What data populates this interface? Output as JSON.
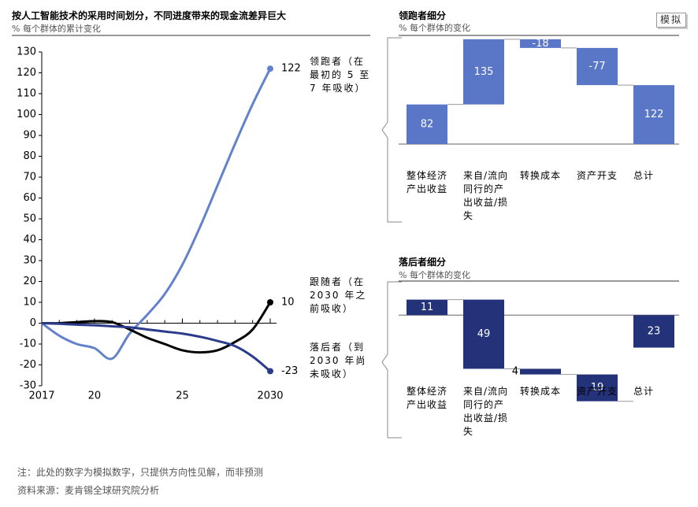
{
  "badge": "模拟",
  "notes": [
    "注：此处的数字为模拟数字，只提供方向性见解，而非预测",
    "资料来源：麦肯锡全球研究院分析"
  ],
  "chart_data": [
    {
      "type": "line",
      "title": "按人工智能技术的采用时间划分，不同进度带来的现金流差异巨大",
      "subtitle": "% 每个群体的累计变化",
      "x": [
        2017,
        2018,
        2019,
        2020,
        2021,
        2022,
        2023,
        2024,
        2025,
        2026,
        2027,
        2028,
        2029,
        2030
      ],
      "xlim": [
        2017,
        2030
      ],
      "xticks": [
        2017,
        {
          "value": 2020,
          "label": "20"
        },
        {
          "value": 2025,
          "label": "25"
        },
        2030
      ],
      "ylim": [
        -30,
        130
      ],
      "yticks": [
        -30,
        -20,
        -10,
        0,
        10,
        20,
        30,
        40,
        50,
        60,
        70,
        80,
        90,
        100,
        110,
        120,
        130
      ],
      "series": [
        {
          "name": "领跑者（在最初的 5 至 7 年吸收）",
          "color": "#6481cc",
          "values": [
            0,
            -6,
            -10,
            -12,
            -17,
            -5,
            4,
            14,
            28,
            46,
            66,
            86,
            105,
            122
          ]
        },
        {
          "name": "跟随者（在 2030 年之前吸收）",
          "color": "#000000",
          "values": [
            0,
            0,
            0.5,
            1,
            0.5,
            -3,
            -7,
            -10,
            -13,
            -14,
            -13,
            -9,
            -3,
            10
          ]
        },
        {
          "name": "落后者（到 2030 年尚未吸收）",
          "color": "#2b3b8c",
          "values": [
            0,
            -0.3,
            -0.7,
            -1,
            -1.5,
            -2,
            -3,
            -4,
            -5,
            -6.5,
            -8.5,
            -11,
            -16,
            -23
          ]
        }
      ]
    },
    {
      "type": "waterfall",
      "title": "领跑者细分",
      "subtitle": "% 每个群体的变化",
      "color": "#5a76c6",
      "last_is_total": true,
      "categories": [
        "整体经济产出收益",
        "来自/流向同行的产出收益/损失",
        "转换成本",
        "资产开支",
        "总计"
      ],
      "values": [
        82,
        135,
        -18,
        -77,
        122
      ],
      "ylim": [
        0,
        220
      ]
    },
    {
      "type": "waterfall",
      "title": "落后者细分",
      "subtitle": "% 每个群体的变化",
      "color": "#24327a",
      "last_is_total": true,
      "categories": [
        "整体经济产出收益",
        "来自/流向同行的产出收益/损失",
        "转换成本",
        "资产开支",
        "总计"
      ],
      "values": [
        11,
        -49,
        -4,
        -19,
        -23
      ],
      "value_labels": [
        "11",
        "49",
        "4",
        "19",
        "23"
      ],
      "ylim": [
        -45,
        13
      ]
    }
  ]
}
